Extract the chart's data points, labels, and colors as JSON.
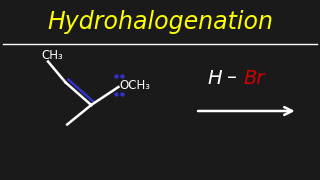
{
  "background_color": "#1a1a1a",
  "title": "Hydrohalogenation",
  "title_color": "#ffff00",
  "title_fontsize": 17,
  "separator_color": "#ffffff",
  "molecule_color": "#ffffff",
  "double_bond_color": "#3333cc",
  "hbr_h_color": "#ffffff",
  "hbr_br_color": "#cc0000",
  "arrow_color": "#ffffff",
  "dots_color": "#3333cc",
  "ch3_label": "CH₃",
  "och3_label": "OCH₃",
  "h_label": "H",
  "br_label": "Br"
}
